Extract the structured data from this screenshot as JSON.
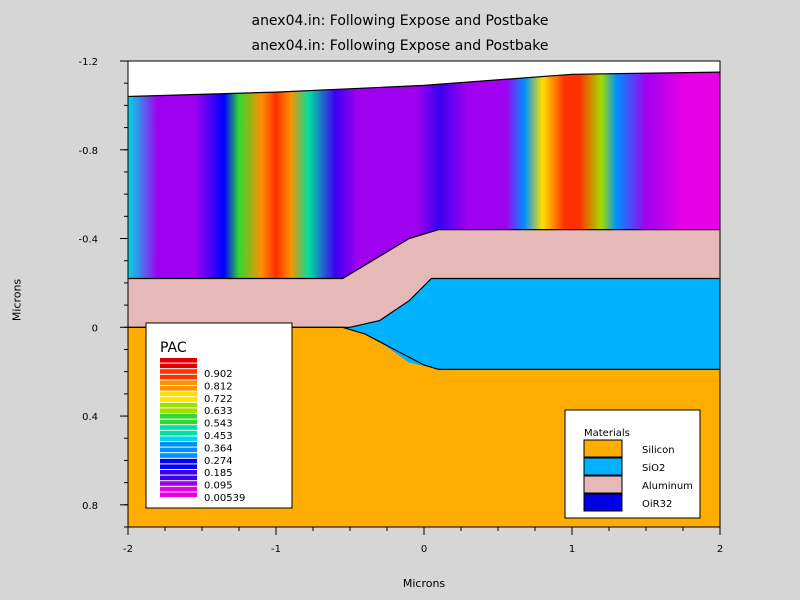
{
  "title": "anex04.in: Following Expose and Postbake",
  "subtitle": "anex04.in: Following Expose and Postbake",
  "chart_data": {
    "type": "heatmap",
    "xlabel": "Microns",
    "ylabel": "Microns",
    "xlim": [
      -2,
      2
    ],
    "ylim": [
      -1.2,
      0.9
    ],
    "y_inverted": true,
    "x_ticks": [
      -2,
      -1,
      0,
      1,
      2
    ],
    "x_tick_labels": [
      "-2",
      "-1",
      "0",
      "1",
      "2"
    ],
    "y_ticks": [
      -1.2,
      -0.8,
      -0.4,
      0,
      0.4,
      0.8
    ],
    "y_tick_labels": [
      "-1.2",
      "-0.8",
      "-0.4",
      "0",
      "0.4",
      "0.8"
    ],
    "pac_legend": {
      "title": "PAC",
      "levels": [
        0.902,
        0.812,
        0.722,
        0.633,
        0.543,
        0.453,
        0.364,
        0.274,
        0.185,
        0.095,
        0.00539
      ],
      "level_labels": [
        "0.902",
        "0.812",
        "0.722",
        "0.633",
        "0.543",
        "0.453",
        "0.364",
        "0.274",
        "0.185",
        "0.095",
        "0.00539"
      ]
    },
    "materials_legend": {
      "title": "Materials",
      "items": [
        {
          "name": "Silicon",
          "color": "#ffad00"
        },
        {
          "name": "SiO2",
          "color": "#00b2ff"
        },
        {
          "name": "Aluminum",
          "color": "#e6b8b8"
        },
        {
          "name": "OiR32",
          "color": "#0000e6"
        }
      ]
    },
    "boundaries": {
      "resist_top": [
        [
          -2,
          -1.04
        ],
        [
          -1,
          -1.06
        ],
        [
          0,
          -1.09
        ],
        [
          1,
          -1.14
        ],
        [
          2,
          -1.15
        ]
      ],
      "aluminum_top": [
        [
          -2,
          -0.22
        ],
        [
          -0.55,
          -0.22
        ],
        [
          -0.4,
          -0.28
        ],
        [
          -0.1,
          -0.4
        ],
        [
          0.1,
          -0.44
        ],
        [
          2,
          -0.44
        ]
      ],
      "aluminum_bottom_right": [
        [
          -2,
          0.0
        ],
        [
          -0.5,
          0.0
        ],
        [
          -0.35,
          0.04
        ],
        [
          -0.1,
          0.16
        ],
        [
          0.05,
          0.18
        ],
        [
          2,
          0.19
        ]
      ],
      "oxide_bottom": [
        [
          -2,
          0.0
        ],
        [
          -0.55,
          0.0
        ],
        [
          -0.4,
          0.03
        ],
        [
          -0.2,
          0.1
        ],
        [
          0.0,
          0.17
        ],
        [
          0.1,
          0.19
        ],
        [
          2,
          0.19
        ]
      ],
      "oxide_top_right": [
        [
          0.05,
          -0.22
        ],
        [
          2,
          -0.22
        ]
      ]
    },
    "pac_profile": {
      "x": [
        -2,
        -1.8,
        -1.55,
        -1.35,
        -1.25,
        -1.1,
        -1.0,
        -0.9,
        -0.78,
        -0.6,
        -0.45,
        -0.3,
        -0.05,
        0.1,
        0.3,
        0.55,
        0.68,
        0.8,
        0.95,
        1.05,
        1.2,
        1.3,
        1.5,
        1.75,
        2
      ],
      "pac": [
        0.36,
        0.05,
        0.05,
        0.2,
        0.55,
        0.8,
        0.9,
        0.8,
        0.5,
        0.15,
        0.05,
        0.05,
        0.1,
        0.15,
        0.05,
        0.05,
        0.35,
        0.7,
        0.9,
        0.9,
        0.65,
        0.3,
        0.05,
        0.02,
        0.01
      ]
    }
  }
}
